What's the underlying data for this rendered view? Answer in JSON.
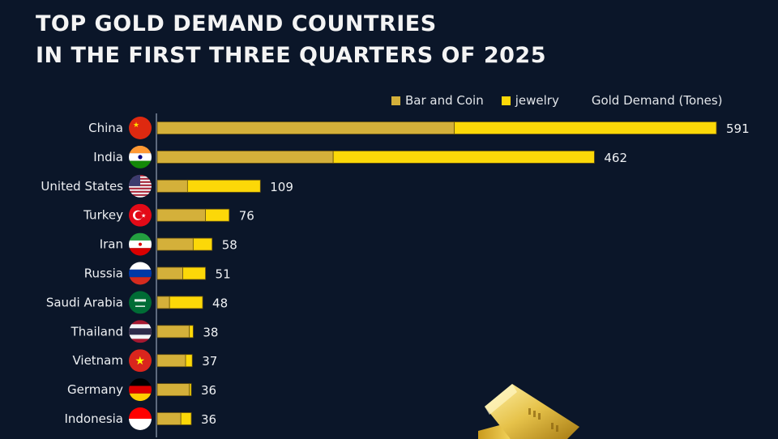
{
  "header": {
    "title_line1": "TOP GOLD DEMAND COUNTRIES",
    "title_line2": "IN THE FIRST THREE QUARTERS OF 2025"
  },
  "legend": {
    "items": [
      {
        "label": "Bar and Coin",
        "color": "#d4b03a"
      },
      {
        "label": "jewelry",
        "color": "#fcd808"
      }
    ],
    "unit_label": "Gold Demand (Tones)"
  },
  "chart_data": {
    "type": "bar",
    "orientation": "horizontal",
    "stacked": true,
    "title": "TOP GOLD DEMAND COUNTRIES IN THE FIRST THREE QUARTERS OF 2025",
    "xlabel": "Gold Demand (Tones)",
    "ylabel": "",
    "xlim": [
      0,
      591
    ],
    "grid": false,
    "legend_position": "top-right",
    "categories": [
      "China",
      "India",
      "United States",
      "Turkey",
      "Iran",
      "Russia",
      "Saudi Arabia",
      "Thailand",
      "Vietnam",
      "Germany",
      "Indonesia"
    ],
    "flags": [
      "china-flag",
      "india-flag",
      "us-flag",
      "turkey-flag",
      "iran-flag",
      "russia-flag",
      "saudi-flag",
      "thailand-flag",
      "vietnam-flag",
      "germany-flag",
      "indonesia-flag"
    ],
    "totals": [
      591,
      462,
      109,
      76,
      58,
      51,
      48,
      38,
      37,
      36,
      36
    ],
    "series": [
      {
        "name": "Bar and Coin",
        "color": "#d4b03a",
        "values": [
          314,
          186,
          32,
          51,
          38,
          27,
          13,
          34,
          30,
          34,
          25
        ]
      },
      {
        "name": "jewelry",
        "color": "#fcd808",
        "values": [
          277,
          276,
          77,
          25,
          20,
          24,
          35,
          4,
          7,
          2,
          11
        ]
      }
    ]
  }
}
